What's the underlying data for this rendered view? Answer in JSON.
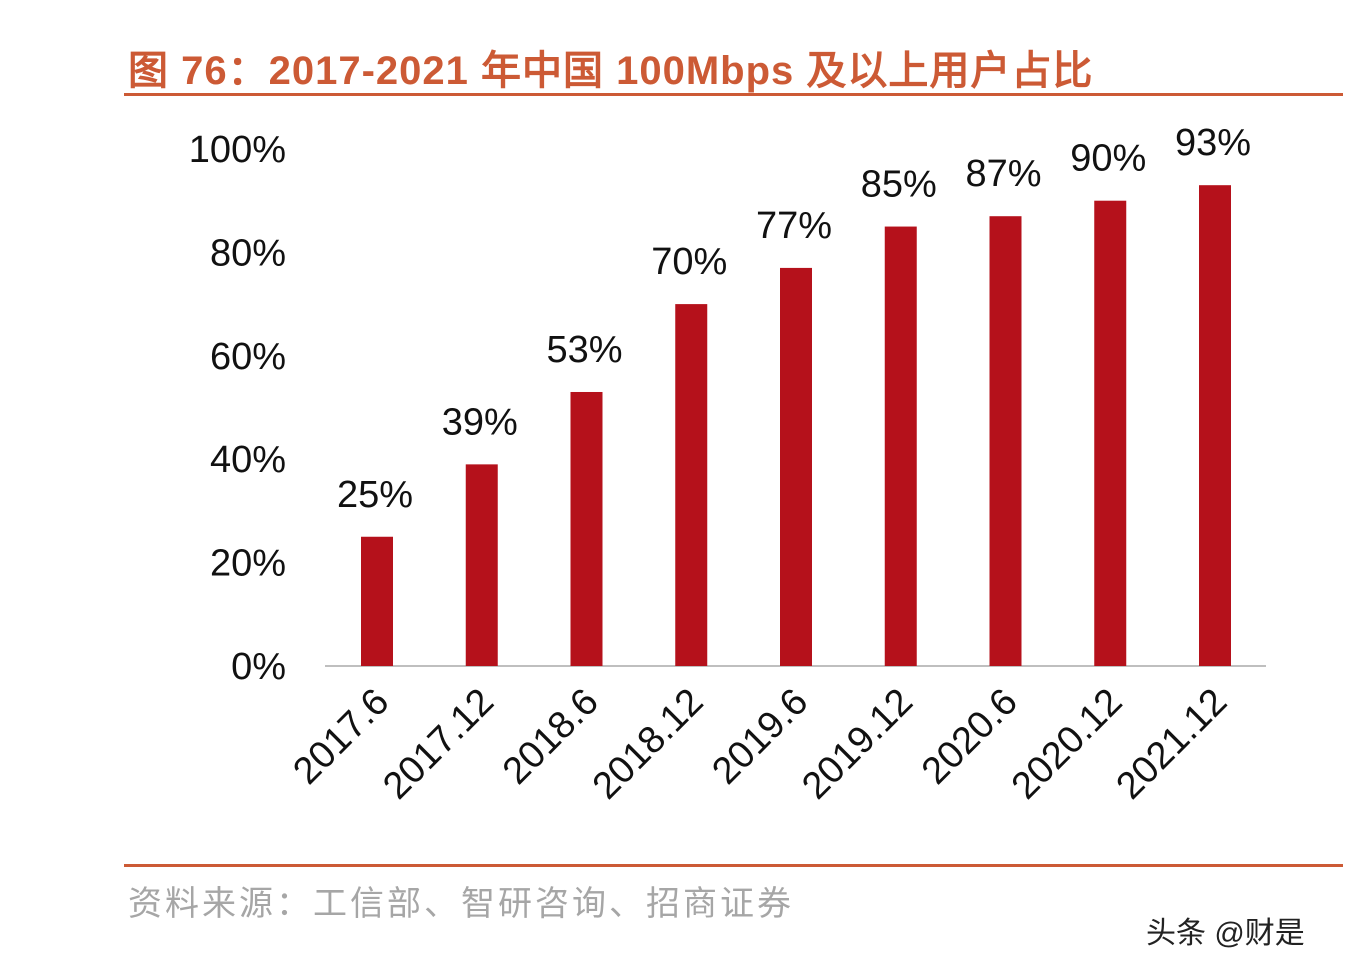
{
  "chart_data": {
    "type": "bar",
    "title": "图 76：2017-2021 年中国 100Mbps 及以上用户占比",
    "categories": [
      "2017.6",
      "2017.12",
      "2018.6",
      "2018.12",
      "2019.6",
      "2019.12",
      "2020.6",
      "2020.12",
      "2021.12"
    ],
    "values": [
      25,
      39,
      53,
      70,
      77,
      85,
      87,
      90,
      93
    ],
    "data_labels": [
      "25%",
      "39%",
      "53%",
      "70%",
      "77%",
      "85%",
      "87%",
      "90%",
      "93%"
    ],
    "ylim": [
      0,
      100
    ],
    "yticks": [
      "0%",
      "20%",
      "40%",
      "60%",
      "80%",
      "100%"
    ],
    "grid": false,
    "bar_color": "#b5111b",
    "title_color": "#cc5a35"
  },
  "source": "资料来源：工信部、智研咨询、招商证券",
  "watermark": "头条 @财是"
}
